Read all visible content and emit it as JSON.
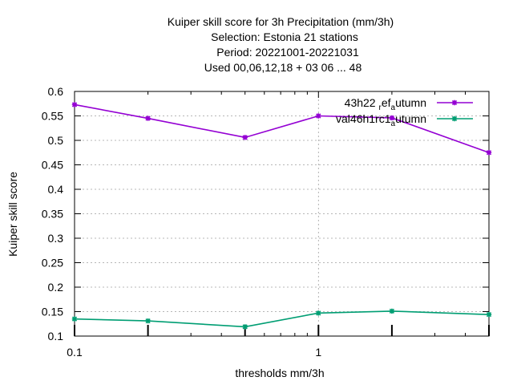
{
  "chart_data": {
    "type": "line",
    "title_lines": [
      "Kuiper skill score  for 3h Precipitation (mm/3h)",
      "Selection: Estonia      21 stations",
      "Period: 20221001-20221031",
      "Used  00,06,12,18  + 03 06 ... 48"
    ],
    "xlabel": "thresholds mm/3h",
    "ylabel": "Kuiper skill score",
    "x_scale": "log",
    "xlim": [
      0.1,
      5
    ],
    "ylim": [
      0.1,
      0.6
    ],
    "x_ticks": [
      {
        "value": 0.1,
        "label": "0.1"
      },
      {
        "value": 1,
        "label": "1"
      }
    ],
    "y_ticks": [
      {
        "value": 0.1,
        "label": "0.1"
      },
      {
        "value": 0.15,
        "label": "0.15"
      },
      {
        "value": 0.2,
        "label": "0.2"
      },
      {
        "value": 0.25,
        "label": "0.25"
      },
      {
        "value": 0.3,
        "label": "0.3"
      },
      {
        "value": 0.35,
        "label": "0.35"
      },
      {
        "value": 0.4,
        "label": "0.4"
      },
      {
        "value": 0.45,
        "label": "0.45"
      },
      {
        "value": 0.5,
        "label": "0.5"
      },
      {
        "value": 0.55,
        "label": "0.55"
      },
      {
        "value": 0.6,
        "label": "0.6"
      }
    ],
    "grid": true,
    "legend_position": "top-right",
    "x": [
      0.1,
      0.2,
      0.5,
      1,
      2,
      5
    ],
    "series": [
      {
        "name": "43h22_ref_autumn",
        "legend_parts": [
          "43h22 ",
          "r",
          "ef",
          "a",
          "utumn"
        ],
        "color": "#9400d3",
        "values": [
          0.573,
          0.545,
          0.506,
          0.55,
          0.546,
          0.475
        ]
      },
      {
        "name": "val46h1rc1_autumn",
        "legend_parts": [
          "val46h1rc1",
          "a",
          "utumn"
        ],
        "color": "#009e73",
        "values": [
          0.135,
          0.131,
          0.119,
          0.147,
          0.151,
          0.144
        ]
      }
    ]
  }
}
